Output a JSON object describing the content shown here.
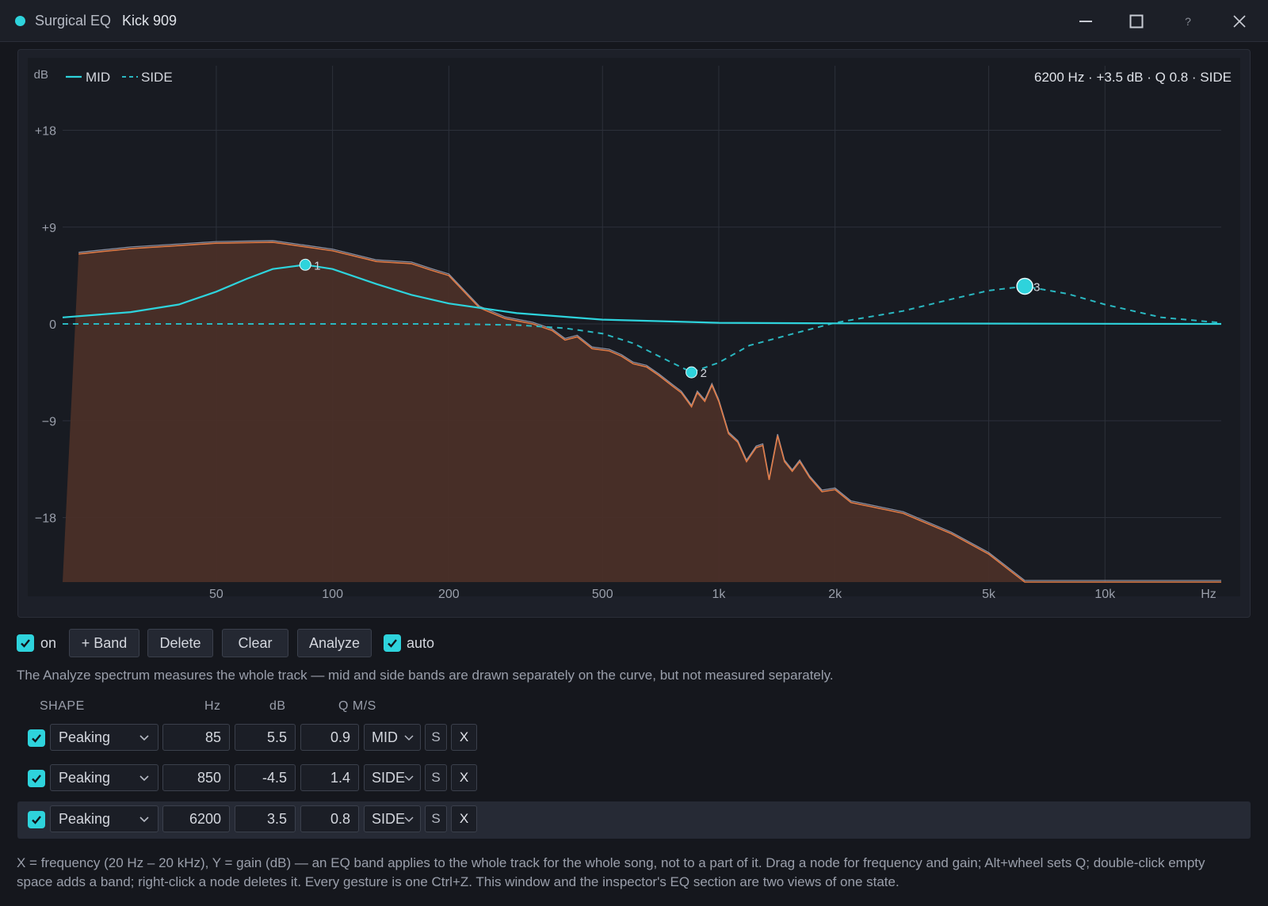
{
  "window": {
    "app_name": "Surgical EQ",
    "track_name": "Kick 909",
    "controls": {
      "minimize": "minimize",
      "maximize": "maximize",
      "help": "?",
      "close": "close"
    }
  },
  "graph": {
    "y_unit": "dB",
    "x_unit": "Hz",
    "legend": [
      {
        "label": "MID",
        "style": "solid"
      },
      {
        "label": "SIDE",
        "style": "dashed"
      }
    ],
    "readout": "6200 Hz · +3.5 dB · Q 0.8 · SIDE",
    "y_ticks": [
      {
        "label": "+18",
        "value": 18
      },
      {
        "label": "+9",
        "value": 9
      },
      {
        "label": "0",
        "value": 0
      },
      {
        "label": "−9",
        "value": -9
      },
      {
        "label": "−18",
        "value": -18
      }
    ],
    "x_ticks": [
      {
        "label": "50",
        "value": 50
      },
      {
        "label": "100",
        "value": 100
      },
      {
        "label": "200",
        "value": 200
      },
      {
        "label": "500",
        "value": 500
      },
      {
        "label": "1k",
        "value": 1000
      },
      {
        "label": "2k",
        "value": 2000
      },
      {
        "label": "5k",
        "value": 5000
      },
      {
        "label": "10k",
        "value": 10000
      }
    ],
    "x_range_hz": [
      20,
      20000
    ],
    "y_range_db": [
      -24,
      24
    ],
    "spectrum_db": [
      [
        20,
        -24
      ],
      [
        22,
        6.5
      ],
      [
        30,
        7.0
      ],
      [
        50,
        7.5
      ],
      [
        70,
        7.6
      ],
      [
        100,
        6.8
      ],
      [
        130,
        5.8
      ],
      [
        160,
        5.6
      ],
      [
        180,
        5.0
      ],
      [
        200,
        4.5
      ],
      [
        240,
        1.5
      ],
      [
        280,
        0.5
      ],
      [
        330,
        0
      ],
      [
        370,
        -0.6
      ],
      [
        400,
        -1.5
      ],
      [
        430,
        -1.2
      ],
      [
        470,
        -2.3
      ],
      [
        520,
        -2.5
      ],
      [
        560,
        -3.0
      ],
      [
        600,
        -3.7
      ],
      [
        650,
        -4.0
      ],
      [
        700,
        -4.8
      ],
      [
        760,
        -5.8
      ],
      [
        800,
        -6.4
      ],
      [
        850,
        -7.7
      ],
      [
        880,
        -6.4
      ],
      [
        920,
        -7.2
      ],
      [
        960,
        -5.7
      ],
      [
        1000,
        -7.2
      ],
      [
        1060,
        -10.2
      ],
      [
        1120,
        -11.0
      ],
      [
        1180,
        -12.8
      ],
      [
        1250,
        -11.5
      ],
      [
        1300,
        -11.3
      ],
      [
        1350,
        -14.5
      ],
      [
        1420,
        -10.4
      ],
      [
        1480,
        -12.8
      ],
      [
        1550,
        -13.7
      ],
      [
        1620,
        -12.8
      ],
      [
        1720,
        -14.3
      ],
      [
        1850,
        -15.6
      ],
      [
        2000,
        -15.4
      ],
      [
        2200,
        -16.6
      ],
      [
        3000,
        -17.6
      ],
      [
        4000,
        -19.5
      ],
      [
        5000,
        -21.4
      ],
      [
        6200,
        -24
      ],
      [
        20000,
        -24
      ]
    ],
    "mid_curve_db": [
      [
        20,
        0.6
      ],
      [
        30,
        1.1
      ],
      [
        40,
        1.8
      ],
      [
        50,
        3.0
      ],
      [
        60,
        4.2
      ],
      [
        70,
        5.1
      ],
      [
        85,
        5.5
      ],
      [
        100,
        5.1
      ],
      [
        130,
        3.7
      ],
      [
        160,
        2.7
      ],
      [
        200,
        1.9
      ],
      [
        300,
        1.0
      ],
      [
        500,
        0.4
      ],
      [
        1000,
        0.1
      ],
      [
        2000,
        0.05
      ],
      [
        20000,
        0
      ]
    ],
    "side_curve_db": [
      [
        20,
        0
      ],
      [
        200,
        0
      ],
      [
        300,
        -0.1
      ],
      [
        400,
        -0.4
      ],
      [
        500,
        -0.9
      ],
      [
        600,
        -1.8
      ],
      [
        700,
        -3.0
      ],
      [
        850,
        -4.5
      ],
      [
        1000,
        -3.6
      ],
      [
        1200,
        -2.0
      ],
      [
        1600,
        -0.8
      ],
      [
        2000,
        0.1
      ],
      [
        3000,
        1.2
      ],
      [
        4000,
        2.3
      ],
      [
        5000,
        3.1
      ],
      [
        6200,
        3.5
      ],
      [
        8000,
        2.8
      ],
      [
        10000,
        1.8
      ],
      [
        14000,
        0.6
      ],
      [
        20000,
        0.1
      ]
    ],
    "nodes": [
      {
        "label": "1",
        "freq": 85,
        "gain": 5.5,
        "selected": false
      },
      {
        "label": "2",
        "freq": 850,
        "gain": -4.5,
        "selected": false
      },
      {
        "label": "3",
        "freq": 6200,
        "gain": 3.5,
        "selected": true
      }
    ],
    "colors": {
      "mid": "#2ed3dc",
      "side": "#2ab8c1",
      "spectrum_fill": "#4a2f28",
      "spectrum_line": "#e07c48",
      "spectrum_outline": "#8b8fa0"
    }
  },
  "toolbar": {
    "on_checked": true,
    "on_label": "on",
    "add_band": "+ Band",
    "delete": "Delete",
    "clear": "Clear",
    "analyze": "Analyze",
    "auto_checked": true,
    "auto_label": "auto"
  },
  "hint": "The Analyze spectrum measures the whole track — mid and side bands are drawn separately on the curve, but not measured separately.",
  "table": {
    "headers": {
      "shape": "SHAPE",
      "hz": "Hz",
      "db": "dB",
      "q_ms": "Q M/S"
    },
    "bands": [
      {
        "enabled": true,
        "shape": "Peaking",
        "hz": "85",
        "db": "5.5",
        "q": "0.9",
        "ms": "MID",
        "solo": "S",
        "remove": "X",
        "selected": false
      },
      {
        "enabled": true,
        "shape": "Peaking",
        "hz": "850",
        "db": "-4.5",
        "q": "1.4",
        "ms": "SIDE",
        "solo": "S",
        "remove": "X",
        "selected": false
      },
      {
        "enabled": true,
        "shape": "Peaking",
        "hz": "6200",
        "db": "3.5",
        "q": "0.8",
        "ms": "SIDE",
        "solo": "S",
        "remove": "X",
        "selected": true
      }
    ]
  },
  "footnote": "X = frequency (20 Hz – 20 kHz), Y = gain (dB) — an EQ band applies to the whole track for the whole song, not to a part of it. Drag a node for frequency and gain; Alt+wheel sets Q; double-click empty space adds a band; right-click a node deletes it. Every gesture is one Ctrl+Z. This window and the inspector's EQ section are two views of one state."
}
